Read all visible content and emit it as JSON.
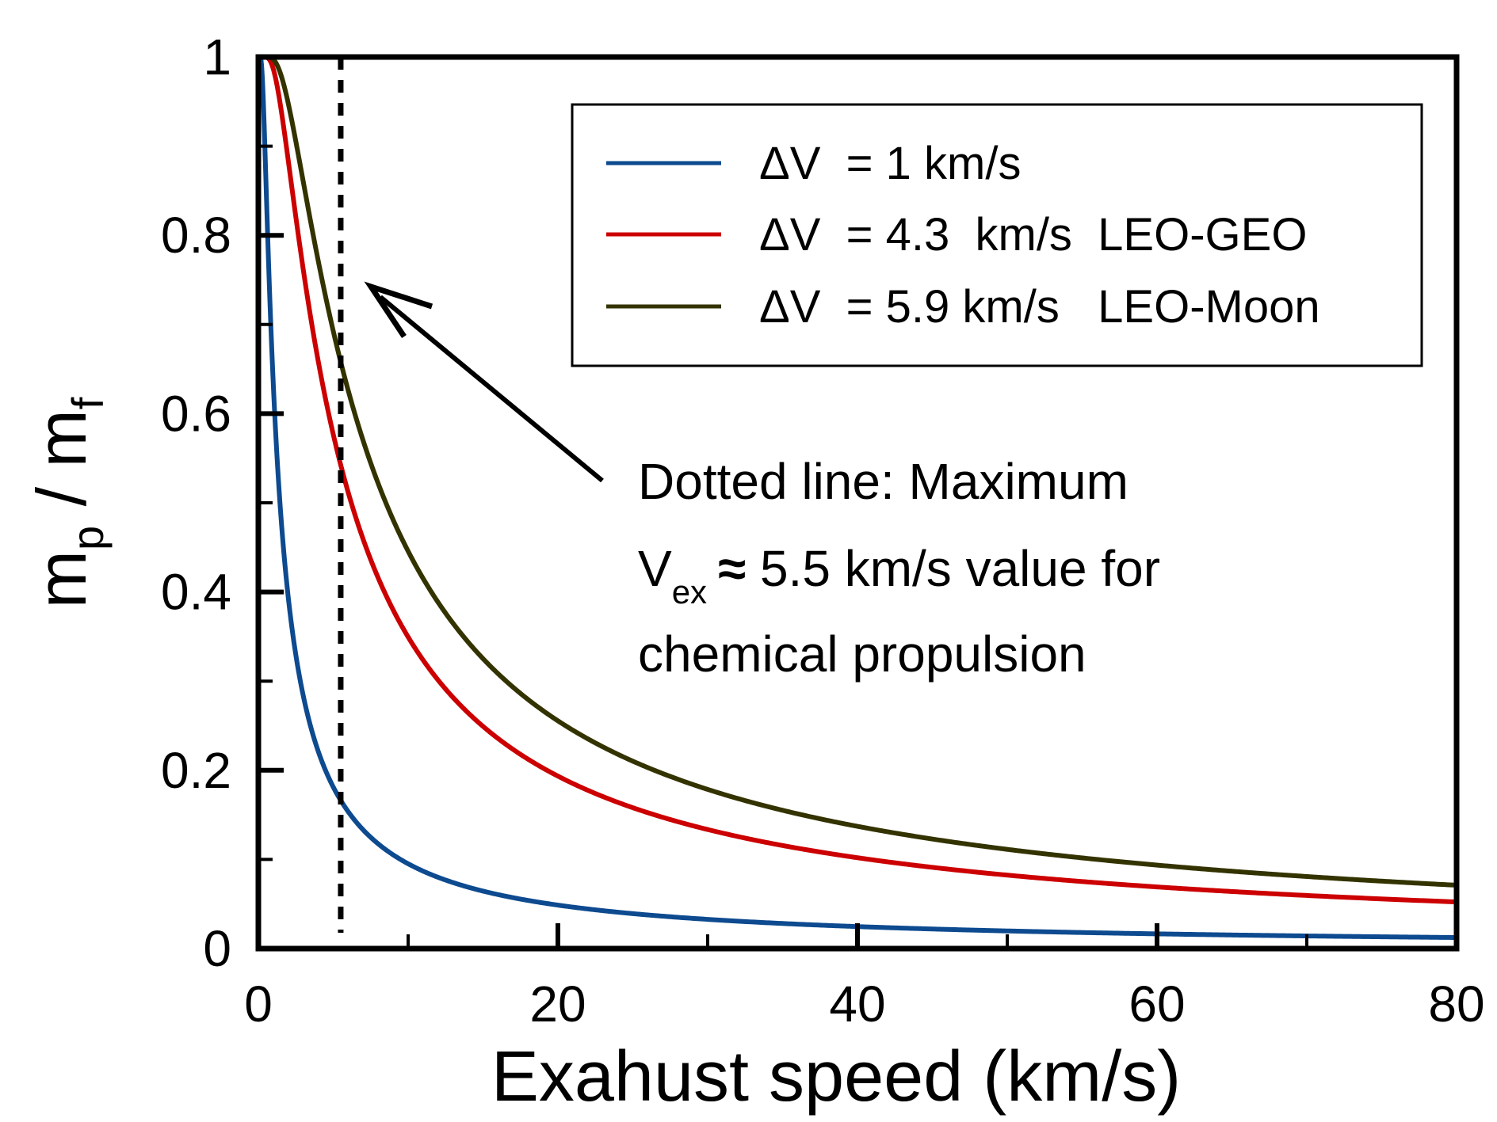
{
  "chart_data": {
    "type": "line",
    "xlabel": "Exahust speed (km/s)",
    "ylabel": {
      "main": "m",
      "sub1": "p",
      "mid": " / m",
      "sub2": "f"
    },
    "xlim": [
      0,
      80
    ],
    "ylim": [
      0,
      1
    ],
    "x_ticks": [
      0,
      20,
      40,
      60,
      80
    ],
    "x_tick_labels": [
      "0",
      "20",
      "40",
      "60",
      "80"
    ],
    "x_minor_ticks": [
      10,
      30,
      50,
      70
    ],
    "y_ticks": [
      0,
      0.2,
      0.4,
      0.6,
      0.8,
      1
    ],
    "y_tick_labels": [
      "0",
      "0.2",
      "0.4",
      "0.6",
      "0.8",
      "1"
    ],
    "y_minor_ticks": [
      0.1,
      0.3,
      0.5,
      0.7,
      0.9
    ],
    "grid": false,
    "legend_position": "top-right",
    "series": [
      {
        "name": "ΔV  = 1 km/s",
        "delta_v_km_s": 1,
        "color": "#0d4a8f"
      },
      {
        "name": "ΔV  = 4.3  km/s  LEO-GEO",
        "delta_v_km_s": 4.3,
        "color": "#cc0000"
      },
      {
        "name": "ΔV  = 5.9 km/s   LEO-Moon",
        "delta_v_km_s": 5.9,
        "color": "#333300"
      }
    ],
    "reference_line": {
      "x": 5.5,
      "style": "dotted",
      "color": "#000000"
    },
    "annotation": {
      "lines": [
        {
          "text": "Dotted line: Maximum"
        },
        {
          "prefix": "V",
          "sub": "ex",
          "approx": "≈",
          "rest": " 5.5 km/s value for"
        },
        {
          "text": "chemical propulsion"
        }
      ]
    }
  }
}
